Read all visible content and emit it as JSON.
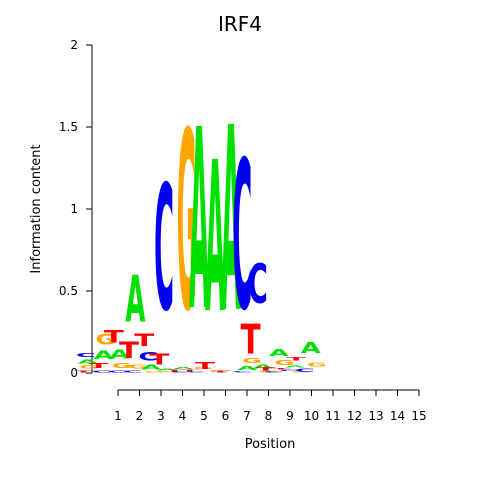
{
  "chart_data": {
    "type": "sequence-logo",
    "title": "IRF4",
    "xlabel": "Position",
    "ylabel": "Information content",
    "ylim": [
      0,
      2
    ],
    "yticks": [
      "0",
      "0.5",
      "1",
      "1.5",
      "2"
    ],
    "positions": [
      "1",
      "2",
      "3",
      "4",
      "5",
      "6",
      "7",
      "8",
      "9",
      "10",
      "11",
      "12",
      "13",
      "14",
      "15"
    ],
    "colors": {
      "A": "#00e000",
      "C": "#0000ee",
      "G": "#ffa500",
      "T": "#ff0000"
    },
    "stacks": [
      [
        {
          "base": "T",
          "value": 0.02
        },
        {
          "base": "G",
          "value": 0.03
        },
        {
          "base": "A",
          "value": 0.04
        },
        {
          "base": "C",
          "value": 0.04
        }
      ],
      [
        {
          "base": "C",
          "value": 0.02
        },
        {
          "base": "T",
          "value": 0.05
        },
        {
          "base": "A",
          "value": 0.08
        },
        {
          "base": "G",
          "value": 0.11
        }
      ],
      [
        {
          "base": "C",
          "value": 0.02
        },
        {
          "base": "G",
          "value": 0.05
        },
        {
          "base": "A",
          "value": 0.09
        },
        {
          "base": "T",
          "value": 0.12
        }
      ],
      [
        {
          "base": "C",
          "value": 0.02
        },
        {
          "base": "G",
          "value": 0.04
        },
        {
          "base": "T",
          "value": 0.16
        },
        {
          "base": "A",
          "value": 0.46
        }
      ],
      [
        {
          "base": "G",
          "value": 0.01
        },
        {
          "base": "A",
          "value": 0.05
        },
        {
          "base": "C",
          "value": 0.08
        },
        {
          "base": "T",
          "value": 0.12
        }
      ],
      [
        {
          "base": "G",
          "value": 0.01
        },
        {
          "base": "A",
          "value": 0.02
        },
        {
          "base": "T",
          "value": 0.11
        },
        {
          "base": "C",
          "value": 1.23
        }
      ],
      [
        {
          "base": "C",
          "value": 0.01
        },
        {
          "base": "T",
          "value": 0.01
        },
        {
          "base": "A",
          "value": 0.02
        },
        {
          "base": "G",
          "value": 1.75
        }
      ],
      [
        {
          "base": "C",
          "value": 0.01
        },
        {
          "base": "T",
          "value": 0.01
        },
        {
          "base": "G",
          "value": 0.02
        },
        {
          "base": "A",
          "value": 1.77
        }
      ],
      [
        {
          "base": "G",
          "value": 0.01
        },
        {
          "base": "T",
          "value": 0.07
        },
        {
          "base": "A",
          "value": 1.48
        }
      ],
      [
        {
          "base": "T",
          "value": 0.02
        },
        {
          "base": "A",
          "value": 1.81
        }
      ],
      [
        {
          "base": "C",
          "value": 0.01
        },
        {
          "base": "A",
          "value": 0.04
        },
        {
          "base": "G",
          "value": 0.05
        },
        {
          "base": "C",
          "value": 1.46
        }
      ],
      [
        {
          "base": "G",
          "value": 0.02
        },
        {
          "base": "A",
          "value": 0.04
        },
        {
          "base": "T",
          "value": 0.29
        },
        {
          "base": "C",
          "value": 0.39
        }
      ],
      [
        {
          "base": "C",
          "value": 0.01
        },
        {
          "base": "T",
          "value": 0.03
        },
        {
          "base": "G",
          "value": 0.05
        },
        {
          "base": "A",
          "value": 0.07
        }
      ],
      [
        {
          "base": "G",
          "value": 0.01
        },
        {
          "base": "C",
          "value": 0.01
        },
        {
          "base": "T",
          "value": 0.01
        },
        {
          "base": "A",
          "value": 0.02
        }
      ],
      [
        {
          "base": "C",
          "value": 0.03
        },
        {
          "base": "G",
          "value": 0.04
        },
        {
          "base": "T",
          "value": 0.03
        },
        {
          "base": "A",
          "value": 0.11
        }
      ]
    ]
  }
}
